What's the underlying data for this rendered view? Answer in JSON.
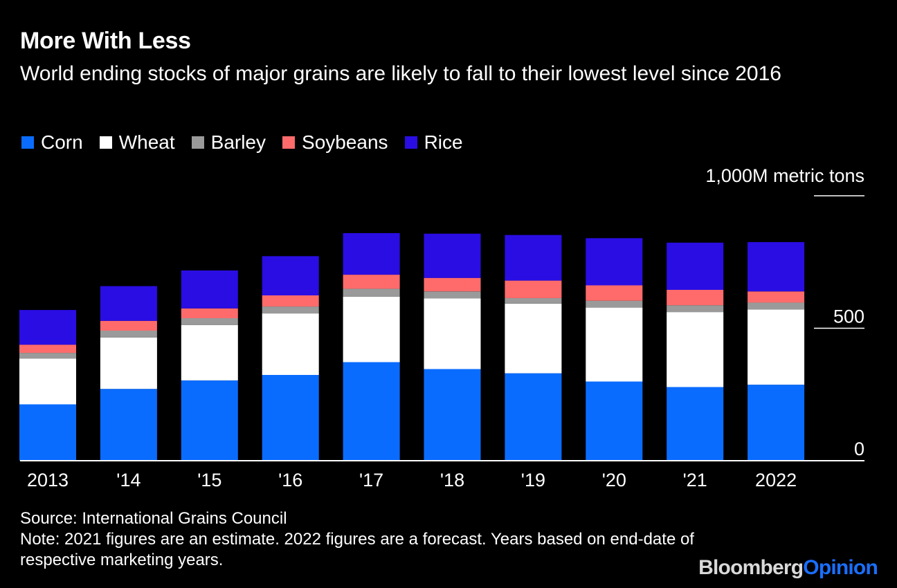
{
  "header": {
    "title": "More With Less",
    "subtitle": "World ending stocks of major grains are likely to fall to their lowest level since 2016"
  },
  "footer": {
    "source": "Source: International Grains Council",
    "note": "Note: 2021 figures are an estimate. 2022 figures are a forecast. Years based on end-date of respective marketing years."
  },
  "brand": {
    "part1": "Bloomberg",
    "part2": "Opinion"
  },
  "chart_data": {
    "type": "bar",
    "stacked": true,
    "categories": [
      "2013",
      "'14",
      "'15",
      "'16",
      "'17",
      "'18",
      "'19",
      "'20",
      "'21",
      "2022"
    ],
    "series": [
      {
        "name": "Corn",
        "color": "#0a6cff",
        "values": [
          213,
          271,
          303,
          324,
          372,
          346,
          330,
          299,
          278,
          287
        ]
      },
      {
        "name": "Wheat",
        "color": "#ffffff",
        "values": [
          173,
          194,
          209,
          232,
          247,
          267,
          263,
          279,
          283,
          284
        ]
      },
      {
        "name": "Barley",
        "color": "#9a9a9a",
        "values": [
          21,
          26,
          26,
          26,
          30,
          26,
          21,
          26,
          26,
          26
        ]
      },
      {
        "name": "Soybeans",
        "color": "#ff6b6b",
        "values": [
          31,
          37,
          37,
          42,
          53,
          51,
          66,
          58,
          58,
          42
        ]
      },
      {
        "name": "Rice",
        "color": "#2a0de3",
        "values": [
          131,
          131,
          143,
          148,
          157,
          167,
          172,
          178,
          178,
          186
        ]
      }
    ],
    "y_axis": {
      "unit_label": "1,000M metric tons",
      "ticks": [
        0,
        500,
        1000
      ],
      "tick_labels": [
        "0",
        "500",
        ""
      ],
      "range": [
        0,
        1000
      ]
    },
    "legend_position": "top-left"
  }
}
